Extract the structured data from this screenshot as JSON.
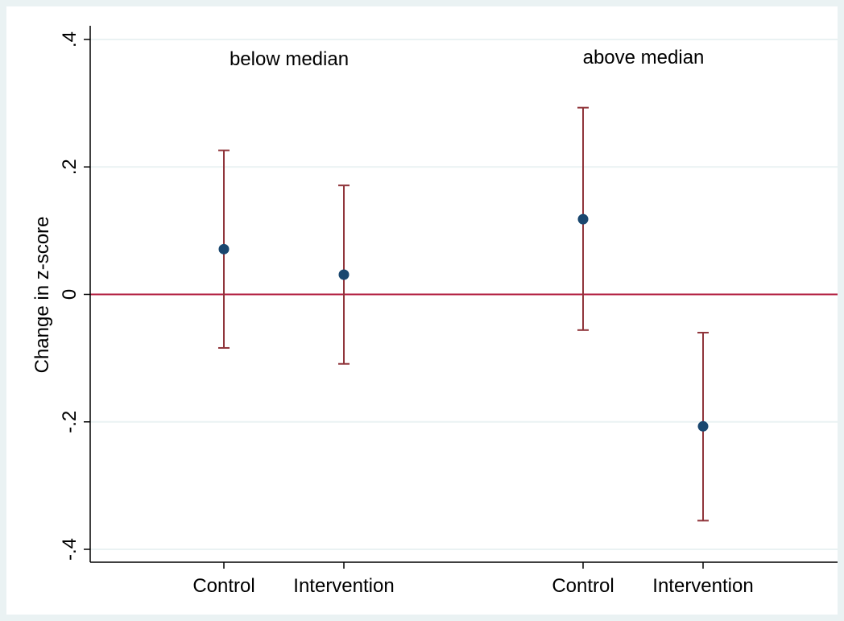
{
  "chart_data": {
    "type": "scatter",
    "ylabel": "Change in z-score",
    "ylim": [
      -0.4,
      0.4
    ],
    "yticks": [
      {
        "value": -0.4,
        "label": "-.4"
      },
      {
        "value": -0.2,
        "label": "-.2"
      },
      {
        "value": 0,
        "label": "0"
      },
      {
        "value": 0.2,
        "label": ".2"
      },
      {
        "value": 0.4,
        "label": ".4"
      }
    ],
    "grid": true,
    "reference_line": {
      "y": 0,
      "color": "#b0173a"
    },
    "groups": [
      {
        "label": "below median"
      },
      {
        "label": "above median"
      }
    ],
    "points": [
      {
        "group": "below median",
        "category": "Control",
        "estimate": 0.071,
        "ci_low": -0.084,
        "ci_high": 0.226
      },
      {
        "group": "below median",
        "category": "Intervention",
        "estimate": 0.031,
        "ci_low": -0.109,
        "ci_high": 0.171
      },
      {
        "group": "above median",
        "category": "Control",
        "estimate": 0.118,
        "ci_low": -0.056,
        "ci_high": 0.293
      },
      {
        "group": "above median",
        "category": "Intervention",
        "estimate": -0.207,
        "ci_low": -0.355,
        "ci_high": -0.06
      }
    ],
    "colors": {
      "background": "#eaf2f3",
      "plot_background": "#ffffff",
      "grid": "#eaf2f3",
      "point": "#1a476f",
      "error_bar": "#90353b",
      "reference_line": "#b0173a"
    }
  }
}
